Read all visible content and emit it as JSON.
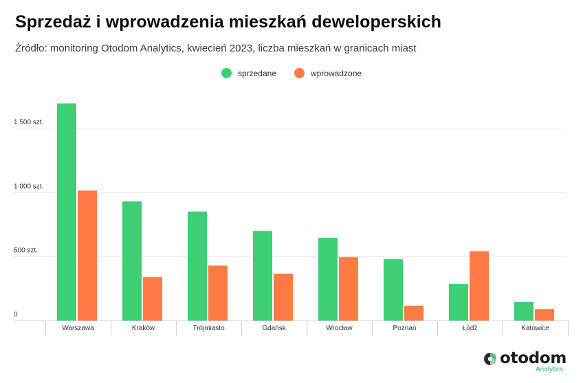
{
  "title": "Sprzedaż i wprowadzenia mieszkań deweloperskich",
  "subtitle": "Źródło: monitoring Otodom Analytics, kwiecień 2023, liczba mieszkań w granicach miast",
  "colors": {
    "sprzedane": "#3ecf74",
    "wprowadzone": "#ff7a45",
    "grid": "#ececec",
    "axis": "#cfcfcf"
  },
  "logo": {
    "word": "otodom",
    "sub": "Analytics"
  },
  "chart_data": {
    "type": "bar",
    "categories": [
      "Warszawa",
      "Kraków",
      "Trójmiasto",
      "Gdańsk",
      "Wrocław",
      "Poznań",
      "Łódź",
      "Katowice"
    ],
    "series": [
      {
        "name": "sprzedane",
        "values": [
          1695,
          930,
          850,
          700,
          645,
          480,
          285,
          145
        ]
      },
      {
        "name": "wprowadzone",
        "values": [
          1015,
          340,
          430,
          365,
          495,
          115,
          540,
          90
        ]
      }
    ],
    "yticks": [
      {
        "value": 0,
        "label": "0"
      },
      {
        "value": 500,
        "label": "500 szt."
      },
      {
        "value": 1000,
        "label": "1 000 szt."
      },
      {
        "value": 1500,
        "label": "1 500 szt."
      }
    ],
    "ylim": [
      0,
      1500
    ],
    "legend": "top-center",
    "xlabel": "",
    "ylabel": ""
  }
}
